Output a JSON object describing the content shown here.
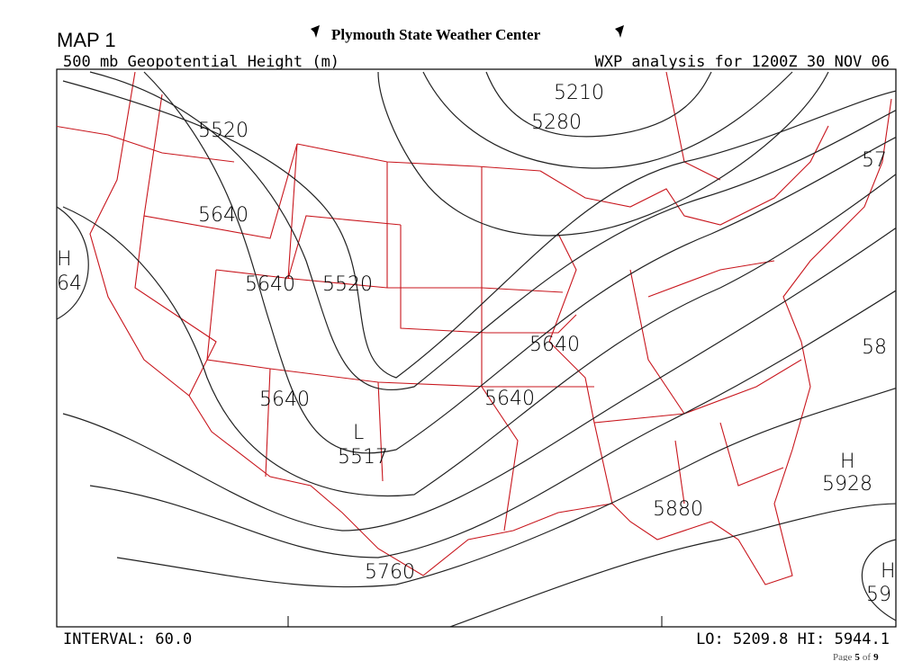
{
  "header": {
    "map_id": "MAP 1",
    "center": "Plymouth State Weather Center",
    "field": "500 mb Geopotential Height (m)",
    "analysis": "WXP analysis for 1200Z 30 NOV 06"
  },
  "map": {
    "labels": [
      "5210",
      "5280",
      "5520",
      "5640",
      "5640",
      "5520",
      "5640",
      "5640",
      "5640",
      "5760",
      "5880",
      "57",
      "58",
      "64",
      "H",
      "L",
      "5517",
      "H",
      "5928",
      "H",
      "59"
    ]
  },
  "footer": {
    "interval": "INTERVAL:  60.0",
    "extremes": "LO: 5209.8  HI: 5944.1"
  },
  "page": {
    "label": "Page",
    "current": "5",
    "sep": "of",
    "total": "9"
  }
}
